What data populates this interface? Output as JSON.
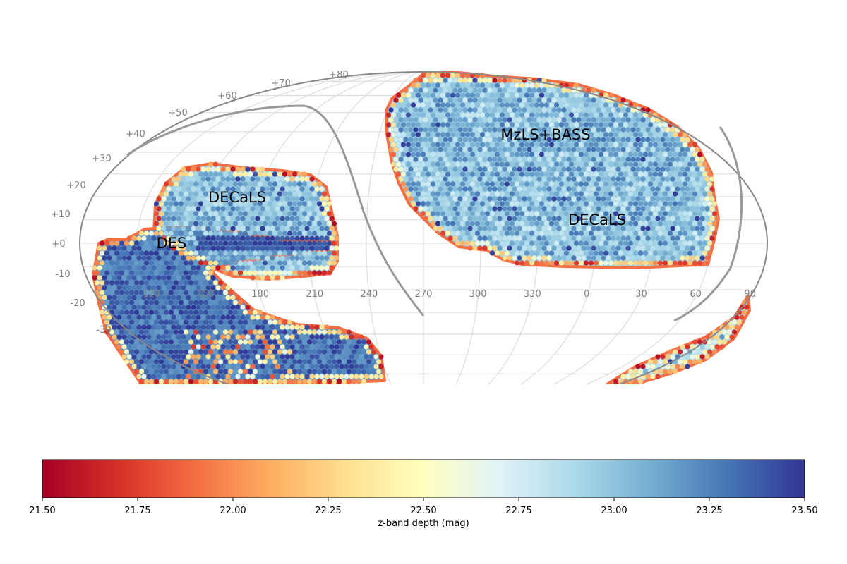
{
  "chart_data": {
    "type": "heatmap",
    "projection": "mollweide",
    "ra_ticks": [
      "330",
      "300",
      "270",
      "240",
      "210",
      "180",
      "150",
      "120",
      "90",
      "60",
      "30",
      "0"
    ],
    "dec_ticks": [
      "+80",
      "+70",
      "+60",
      "+50",
      "+40",
      "+30",
      "+20",
      "+10",
      "+0",
      "-10",
      "-20",
      "-30"
    ],
    "regions": [
      {
        "name": "MzLS+BASS",
        "depth_typical": 23.0
      },
      {
        "name": "DECaLS",
        "depth_typical": 23.0
      },
      {
        "name": "DECaLS",
        "depth_typical": 23.1
      },
      {
        "name": "DES",
        "depth_typical": 23.4
      }
    ],
    "colorbar": {
      "label": "z-band depth (mag)",
      "range": [
        21.5,
        23.5
      ],
      "ticks": [
        "21.50",
        "21.75",
        "22.00",
        "22.25",
        "22.50",
        "22.75",
        "23.00",
        "23.25",
        "23.50"
      ],
      "colormap": "RdYlBu",
      "colors": [
        "#a50026",
        "#d73027",
        "#f46d43",
        "#fdae61",
        "#fee090",
        "#ffffbf",
        "#e0f3f8",
        "#abd9e9",
        "#74add1",
        "#4575b4",
        "#313695"
      ]
    }
  }
}
